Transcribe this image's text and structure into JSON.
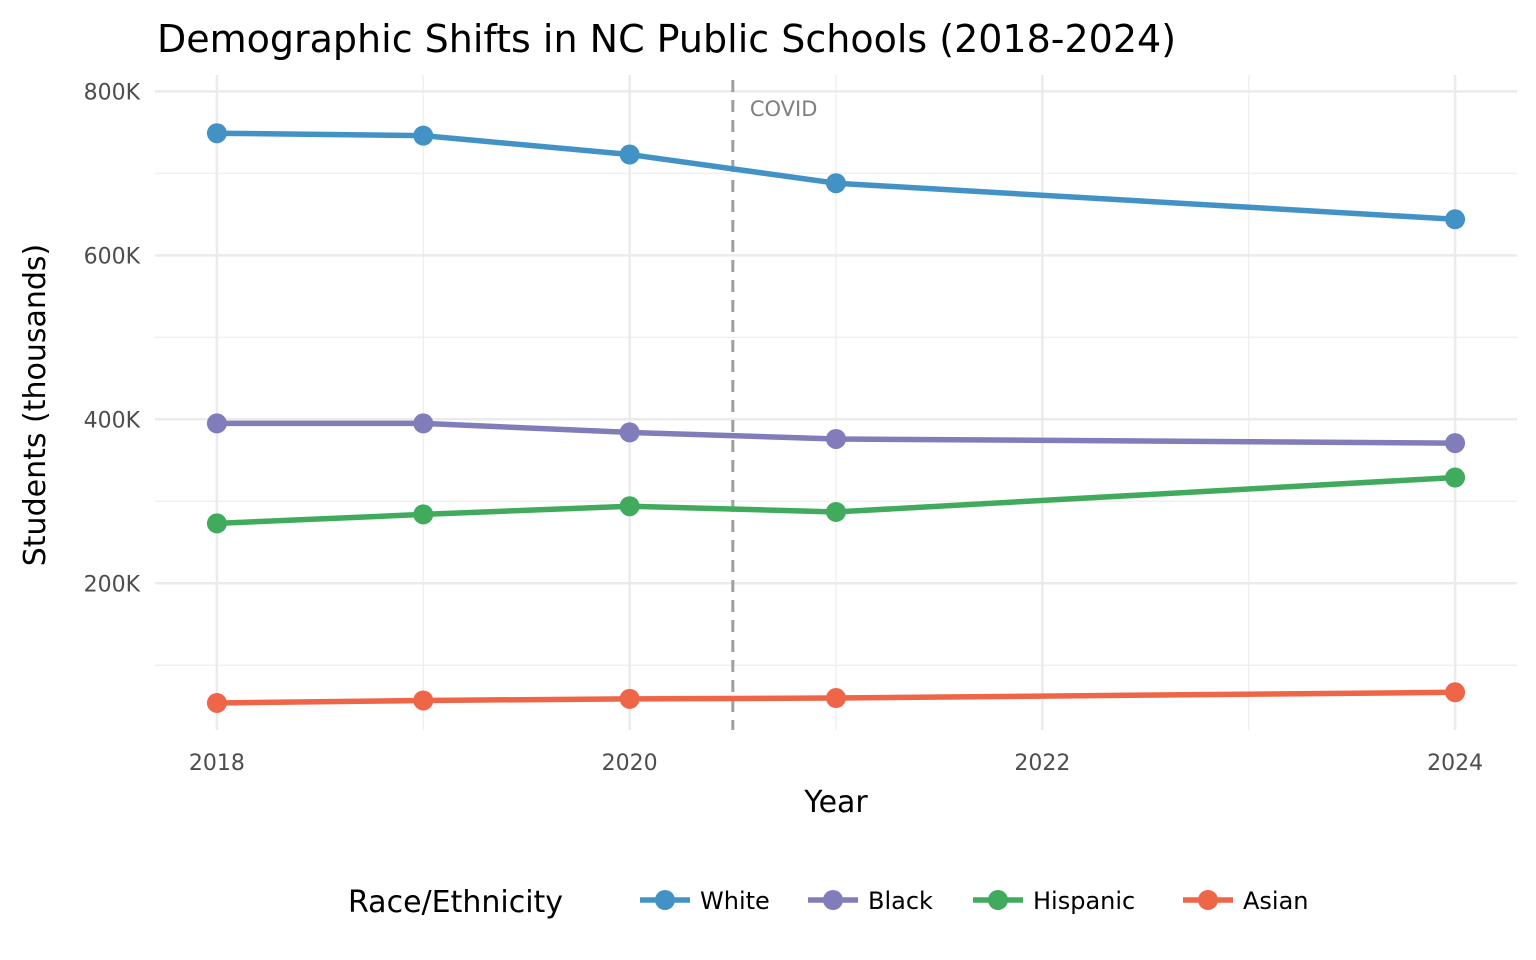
{
  "chart_data": {
    "type": "line",
    "title": "Demographic Shifts in NC Public Schools (2018-2024)",
    "xlabel": "Year",
    "ylabel": "Students (thousands)",
    "x": [
      2018,
      2019,
      2020,
      2021,
      2024
    ],
    "xlim": [
      2017.7,
      2024.3
    ],
    "ylim": [
      21,
      820
    ],
    "x_ticks": [
      2018,
      2020,
      2022,
      2024
    ],
    "x_tick_labels": [
      "2018",
      "2020",
      "2022",
      "2024"
    ],
    "y_ticks": [
      200,
      400,
      600,
      800
    ],
    "y_tick_labels": [
      "200K",
      "400K",
      "600K",
      "800K"
    ],
    "grid": true,
    "legend": {
      "title": "Race/Ethnicity",
      "position": "bottom"
    },
    "annotation": {
      "text": "COVID",
      "x": 2020.5
    },
    "series": [
      {
        "name": "White",
        "color": "#4292c6",
        "values": [
          749,
          746,
          723,
          688,
          644
        ]
      },
      {
        "name": "Black",
        "color": "#807dba",
        "values": [
          395,
          395,
          384,
          376,
          371
        ]
      },
      {
        "name": "Hispanic",
        "color": "#41ab5d",
        "values": [
          273,
          284,
          294,
          287,
          329
        ]
      },
      {
        "name": "Asian",
        "color": "#ef6548",
        "values": [
          54,
          57,
          59,
          60,
          67
        ]
      }
    ]
  }
}
